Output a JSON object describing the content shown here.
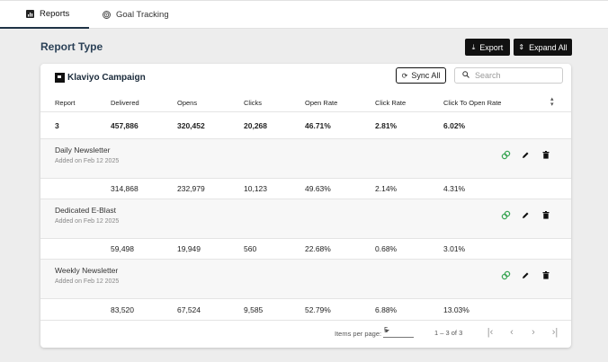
{
  "tabs": [
    {
      "label": "Reports",
      "icon": "report-icon",
      "active": true
    },
    {
      "label": "Goal Tracking",
      "icon": "target-icon",
      "active": false
    }
  ],
  "page_title": "Report Type",
  "toolbar": {
    "export_label": "Export",
    "expand_label": "Expand All"
  },
  "card": {
    "title": "Klaviyo Campaign",
    "sync_label": "Sync All",
    "search_placeholder": "Search"
  },
  "columns": [
    "Report",
    "Delivered",
    "Opens",
    "Clicks",
    "Open Rate",
    "Click Rate",
    "Click To Open Rate"
  ],
  "totals": {
    "report": "3",
    "delivered": "457,886",
    "opens": "320,452",
    "clicks": "20,268",
    "open_rate": "46.71%",
    "click_rate": "2.81%",
    "cto_rate": "6.02%"
  },
  "campaigns": [
    {
      "name": "Daily Newsletter",
      "added": "Added on Feb 12 2025",
      "delivered": "314,868",
      "opens": "232,979",
      "clicks": "10,123",
      "open_rate": "49.63%",
      "click_rate": "2.14%",
      "cto_rate": "4.31%"
    },
    {
      "name": "Dedicated E-Blast",
      "added": "Added on Feb 12 2025",
      "delivered": "59,498",
      "opens": "19,949",
      "clicks": "560",
      "open_rate": "22.68%",
      "click_rate": "0.68%",
      "cto_rate": "3.01%"
    },
    {
      "name": "Weekly Newsletter",
      "added": "Added on Feb 12 2025",
      "delivered": "83,520",
      "opens": "67,524",
      "clicks": "9,585",
      "open_rate": "52.79%",
      "click_rate": "6.88%",
      "cto_rate": "13.03%"
    }
  ],
  "pagination": {
    "items_per_page_label": "Items per page:",
    "items_per_page": "5",
    "range": "1 – 3 of 3"
  },
  "colors": {
    "accent_dark": "#111111",
    "title_blue": "#2b4157",
    "goal_icon_green": "#3aa655"
  }
}
